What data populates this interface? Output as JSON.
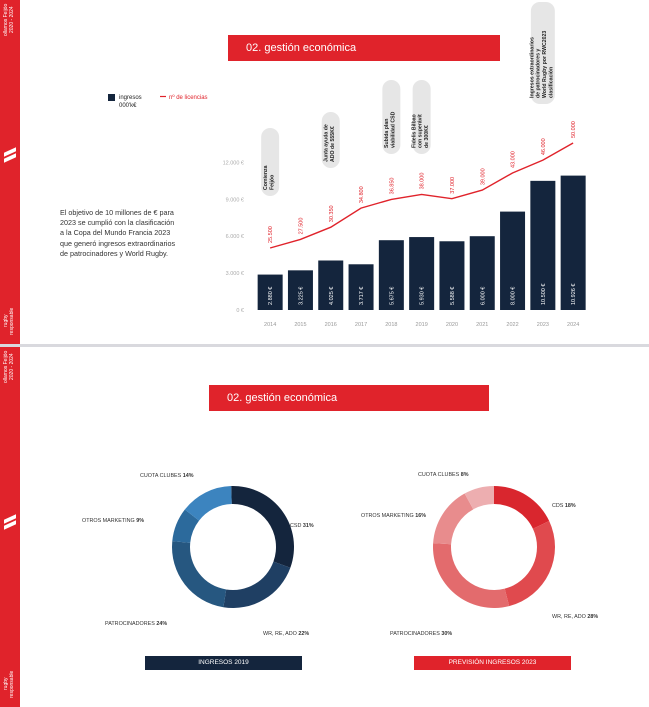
{
  "page1": {
    "side_top": "ollamos Feijóo\n2020 - 2024",
    "side_bottom": "rugby\nresponsable",
    "banner": "02. gestión económica",
    "intro": "El objetivo de 10 millones de € para 2023 se cumplió con la clasificación a la Copa del Mundo Francia 2023 que generó ingresos extraordinarios de patrocinadores y World Rugby."
  },
  "page2": {
    "side_top": "ollamos Feijóo\n2020 - 2024",
    "side_bottom": "rugby\nresponsable",
    "banner": "02. gestión económica",
    "footer_left": "INGRESOS 2019",
    "footer_right": "PREVISIÓN INGRESOS 2023"
  },
  "colors": {
    "red": "#e0232b",
    "navy": "#14253d",
    "grey": "#e6e6e6"
  },
  "chart_data": [
    {
      "type": "bar",
      "categories": [
        "2014",
        "2015",
        "2016",
        "2017",
        "2018",
        "2019",
        "2020",
        "2021",
        "2022",
        "2023",
        "2024"
      ],
      "series": [
        {
          "name": "ingresos 000'k€",
          "type": "bar",
          "color": "#14253d",
          "values": [
            2.88,
            3.225,
            4.025,
            3.717,
            5.675,
            5.93,
            5.588,
            6.0,
            8.0,
            10.5,
            10.926
          ],
          "value_labels": [
            "2.880 €",
            "3.225 €",
            "4.025 €",
            "3.717 €",
            "5.675 €",
            "5.930 €",
            "5.588 €",
            "6.000 €",
            "8.000 €",
            "10.500 €",
            "10.926 €"
          ]
        },
        {
          "name": "nº de licencias",
          "type": "line",
          "color": "#e0232b",
          "values": [
            25500,
            27500,
            30350,
            34800,
            36850,
            38000,
            37000,
            39000,
            43000,
            46000,
            50000
          ],
          "value_labels": [
            "25.500",
            "27.500",
            "30.350",
            "34.800",
            "36.850",
            "38.000",
            "37.000",
            "39.000",
            "43.000",
            "46.000",
            "50.000"
          ]
        }
      ],
      "legend": {
        "bar_label": "ingresos\n000'k€",
        "line_label": "nº de licencias"
      },
      "y_ticks": [
        "0 €",
        "3.000 €",
        "6.000 €",
        "9.000 €",
        "12.000 €"
      ],
      "ylim": [
        0,
        14
      ],
      "annotations": [
        {
          "category": "2014",
          "text": "Comienza Feijóo"
        },
        {
          "category": "2016",
          "text": "Junta ayuda de ADO de 555K€"
        },
        {
          "category": "2018",
          "text": "Subida plan viabilidad CSD"
        },
        {
          "category": "2019",
          "text": "Fidelis Bilbao con superávit de 300K€"
        },
        {
          "category": "2023",
          "text": "Ingresos extraordinarios de patrocinadores y World Rugby por RWC2023 clasificación"
        }
      ]
    },
    {
      "type": "pie",
      "title": "INGRESOS 2019",
      "labels": [
        "CSD",
        "WR, RE, ADO",
        "PATROCINADORES",
        "OTROS MARKETING",
        "CUOTA CLUBES"
      ],
      "values": [
        31,
        22,
        24,
        9,
        14
      ],
      "label_text": [
        "CSD 31%",
        "WR, RE, ADO 22%",
        "PATROCINADORES 24%",
        "OTROS MARKETING 9%",
        "CUOTA CLUBES 14%"
      ],
      "colors": [
        "#14253d",
        "#1f3f63",
        "#265780",
        "#2c6a9c",
        "#3c84bf"
      ]
    },
    {
      "type": "pie",
      "title": "PREVISIÓN INGRESOS 2023",
      "labels": [
        "CDS",
        "WR, RE, ADO",
        "PATROCINADORES",
        "OTROS MARKETING",
        "CUOTA CLUBES"
      ],
      "values": [
        18,
        28,
        30,
        16,
        8
      ],
      "label_text": [
        "CDS 18%",
        "WR, RE, ADO 28%",
        "PATROCINADORES 30%",
        "OTROS MARKETING 16%",
        "CUOTA CLUBES 8%"
      ],
      "colors": [
        "#d9262e",
        "#e04a4e",
        "#e36b6d",
        "#e88c8d",
        "#edaeb0"
      ]
    }
  ]
}
